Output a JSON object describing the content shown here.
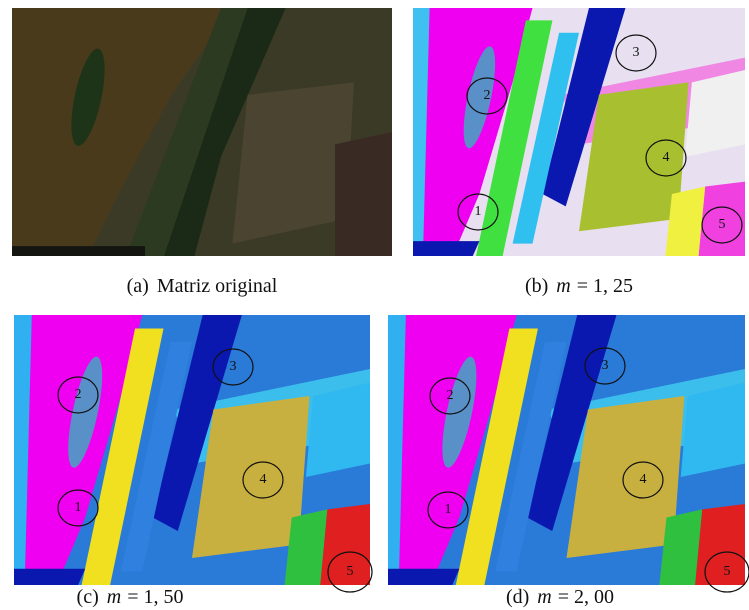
{
  "panels": [
    {
      "tag": "(a)",
      "caption": "Matriz original"
    },
    {
      "tag": "(b)",
      "var": "m",
      "rest": "= 1, 25",
      "labels": [
        "1",
        "2",
        "3",
        "4",
        "5"
      ]
    },
    {
      "tag": "(c)",
      "var": "m",
      "rest": "= 1, 50",
      "labels": [
        "1",
        "2",
        "3",
        "4",
        "5"
      ]
    },
    {
      "tag": "(d)",
      "var": "m",
      "rest": "= 2, 00",
      "labels": [
        "1",
        "2",
        "3",
        "4",
        "5"
      ]
    }
  ]
}
